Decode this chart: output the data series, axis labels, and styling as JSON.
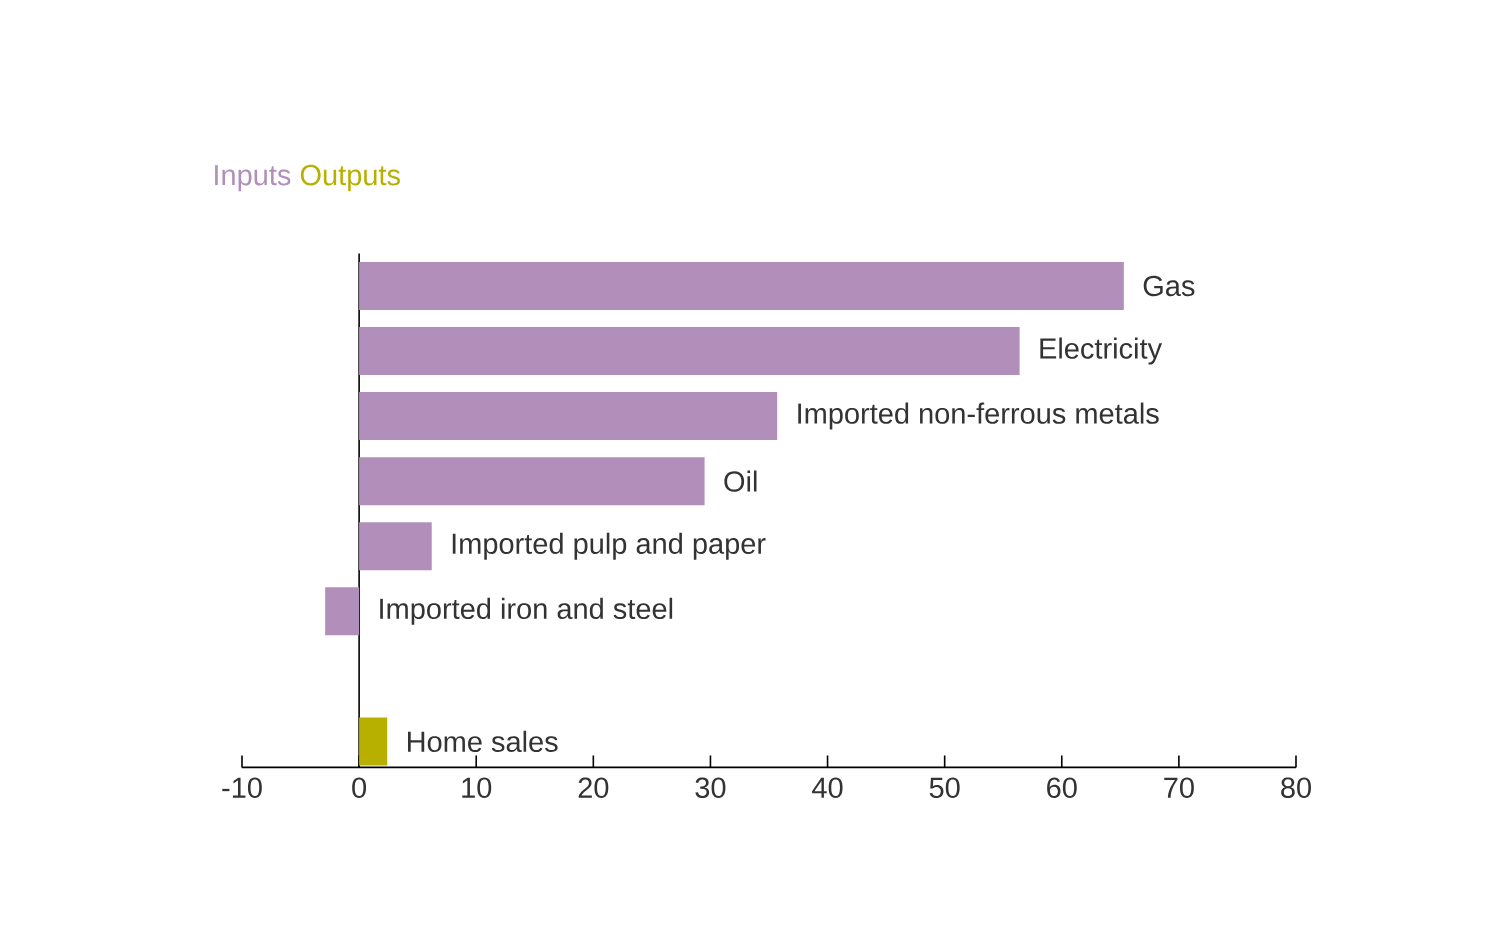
{
  "chart_data": {
    "type": "bar",
    "orientation": "horizontal",
    "categories": [
      "Gas",
      "Electricity",
      "Imported non-ferrous metals",
      "Oil",
      "Imported pulp and paper",
      "Imported iron and steel",
      null,
      "Home sales"
    ],
    "series": [
      {
        "name": "Inputs",
        "color": "#b28fba",
        "values": [
          65.3,
          56.4,
          35.7,
          29.5,
          6.2,
          -2.9,
          null,
          null
        ]
      },
      {
        "name": "Outputs",
        "color": "#b8b000",
        "values": [
          null,
          null,
          null,
          null,
          null,
          null,
          null,
          2.4
        ]
      }
    ],
    "xlim": [
      -10,
      80
    ],
    "xticks": [
      -10,
      0,
      10,
      20,
      30,
      40,
      50,
      60,
      70,
      80
    ],
    "legend": "top left"
  }
}
